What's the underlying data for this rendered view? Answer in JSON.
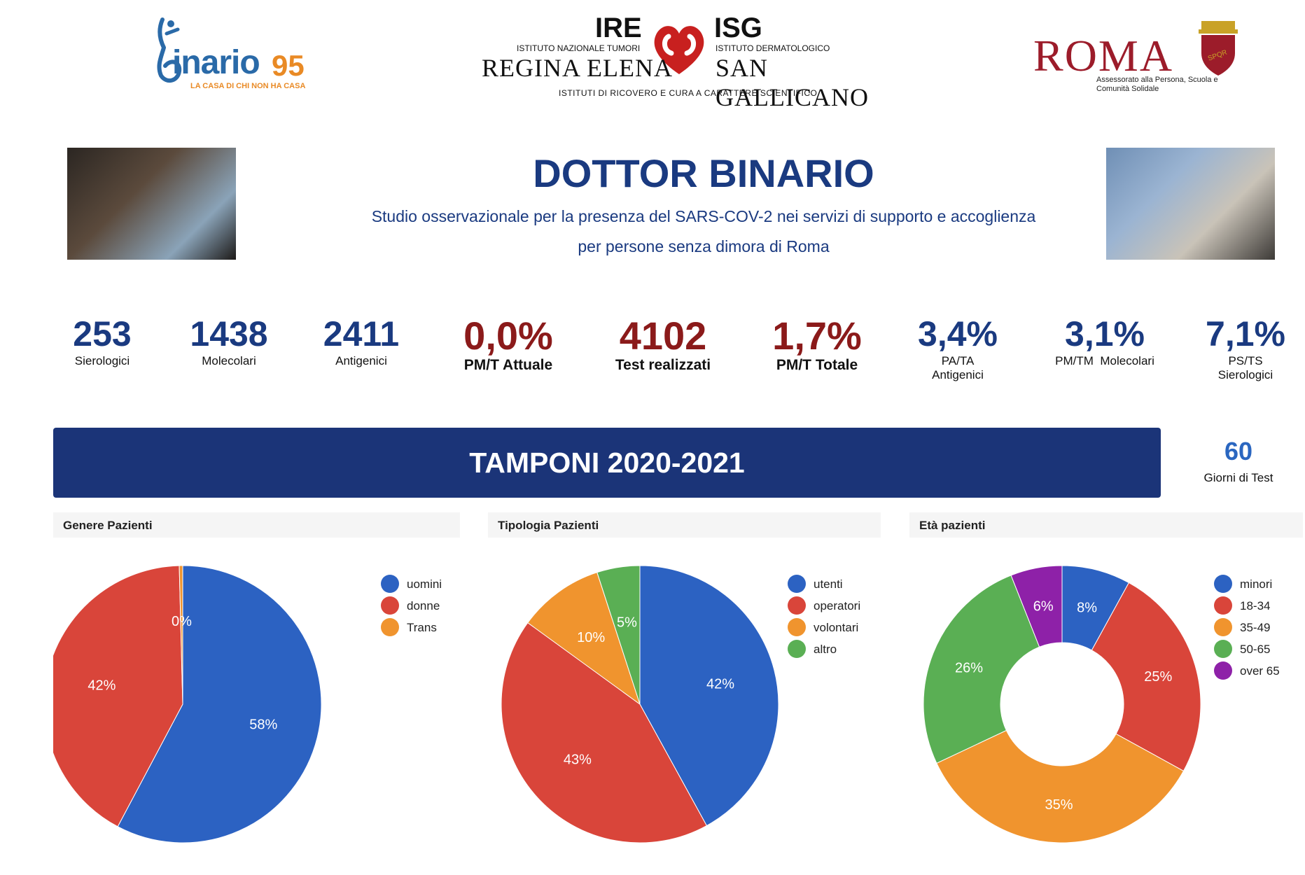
{
  "logos": {
    "binario": {
      "word": "inario",
      "number": "95",
      "tagline": "LA CASA DI CHI NON HA CASA"
    },
    "ire_isg": {
      "ire": "IRE",
      "isg": "ISG",
      "ire_sub": "ISTITUTO NAZIONALE TUMORI",
      "ire_name": "REGINA ELENA",
      "isg_sub": "ISTITUTO DERMATOLOGICO",
      "isg_name": "SAN GALLICANO",
      "footer": "ISTITUTI DI RICOVERO E CURA A CARATTERE SCIENTIFICO"
    },
    "roma": {
      "word": "ROMA",
      "subtitle": "Assessorato alla Persona, Scuola e Comunità Solidale",
      "emblem": "SPQR"
    }
  },
  "header": {
    "title": "DOTTOR BINARIO",
    "subtitle_line1": "Studio osservazionale per la presenza del SARS-COV-2 nei servizi di supporto e accoglienza",
    "subtitle_line2": "per persone senza dimora di Roma"
  },
  "kpis": [
    {
      "value": "253",
      "label": "Sierologici",
      "style": "blue"
    },
    {
      "value": "1438",
      "label": "Molecolari",
      "style": "blue"
    },
    {
      "value": "2411",
      "label": "Antigenici",
      "style": "blue"
    },
    {
      "value": "0,0%",
      "label": "PM/T Attuale",
      "style": "red"
    },
    {
      "value": "4102",
      "label": "Test realizzati",
      "style": "red"
    },
    {
      "value": "1,7%",
      "label": "PM/T Totale",
      "style": "red"
    },
    {
      "value": "3,4%",
      "label": "PA/TA\nAntigenici",
      "style": "blue"
    },
    {
      "value": "3,1%",
      "label": "PM/TM  Molecolari",
      "style": "blue"
    },
    {
      "value": "7,1%",
      "label": "PS/TS\nSierologici",
      "style": "blue"
    }
  ],
  "banner": {
    "title": "TAMPONI 2020-2021"
  },
  "days": {
    "value": "60",
    "label": "Giorni di Test"
  },
  "colors": {
    "primary": "#1b3478",
    "title": "#1a3a80",
    "kpi_red": "#8b1a1a",
    "blue": "#2c62c2",
    "red": "#d9453a",
    "orange": "#f0942e",
    "green": "#5aaf54",
    "purple": "#8e21a8"
  },
  "chart_data": [
    {
      "type": "pie",
      "title": "Genere Pazienti",
      "categories": [
        "uomini",
        "donne",
        "Trans"
      ],
      "values": [
        58,
        42,
        0.4
      ],
      "labels": [
        "58%",
        "42%",
        "0%"
      ],
      "colors": [
        "#2c62c2",
        "#d9453a",
        "#f0942e"
      ],
      "legend": "right"
    },
    {
      "type": "pie",
      "title": "Tipologia Pazienti",
      "categories": [
        "utenti",
        "operatori",
        "volontari",
        "altro"
      ],
      "values": [
        42,
        43,
        10,
        5
      ],
      "labels": [
        "42%",
        "43%",
        "10%",
        "5%"
      ],
      "colors": [
        "#2c62c2",
        "#d9453a",
        "#f0942e",
        "#5aaf54"
      ],
      "legend": "right"
    },
    {
      "type": "donut",
      "title": "Età pazienti",
      "categories": [
        "minori",
        "18-34",
        "35-49",
        "50-65",
        "over 65"
      ],
      "values": [
        8,
        25,
        35,
        26,
        6
      ],
      "labels": [
        "8%",
        "25%",
        "35%",
        "26%",
        "6%"
      ],
      "colors": [
        "#2c62c2",
        "#d9453a",
        "#f0942e",
        "#5aaf54",
        "#8e21a8"
      ],
      "legend": "right"
    }
  ]
}
